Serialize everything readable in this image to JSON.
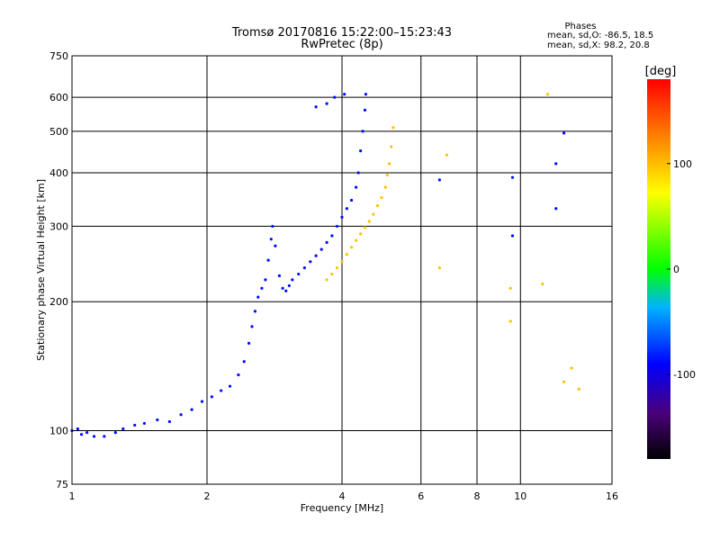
{
  "chart_data": {
    "type": "scatter",
    "title": "Tromsø 20170816 15:22:00–15:23:43",
    "subtitle": "RwPretec (8p)",
    "xlabel": "Frequency [MHz]",
    "ylabel": "Stationary phase Virtual Height [km]",
    "x_scale": "log",
    "y_scale": "log",
    "xlim": [
      1,
      16
    ],
    "ylim": [
      75,
      750
    ],
    "x_ticks": [
      1,
      2,
      4,
      6,
      8,
      10,
      16
    ],
    "x_tick_labels": [
      "1",
      "2",
      "4",
      "6",
      "8",
      "10",
      "16"
    ],
    "y_ticks": [
      75,
      100,
      200,
      300,
      400,
      500,
      600,
      750
    ],
    "y_tick_labels": [
      "75",
      "100",
      "200",
      "300",
      "400",
      "500",
      "600",
      "750"
    ],
    "grid": true,
    "stats": {
      "heading": "Phases",
      "line1": "mean, sd,O: -86.5, 18.5",
      "line2": "mean, sd,X:  98.2, 20.8"
    },
    "colorbar": {
      "label": "[deg]",
      "range": [
        -180,
        180
      ],
      "ticks": [
        100,
        0,
        -100
      ],
      "tick_labels": [
        "100",
        "0",
        "-100"
      ]
    },
    "series": [
      {
        "mode": "O",
        "phase_mean": -86.5,
        "phase_sd": 18.5,
        "points": [
          [
            1.0,
            100
          ],
          [
            1.03,
            101
          ],
          [
            1.05,
            98
          ],
          [
            1.08,
            99
          ],
          [
            1.12,
            97
          ],
          [
            1.18,
            97
          ],
          [
            1.25,
            99
          ],
          [
            1.3,
            101
          ],
          [
            1.38,
            103
          ],
          [
            1.45,
            104
          ],
          [
            1.55,
            106
          ],
          [
            1.65,
            105
          ],
          [
            1.75,
            109
          ],
          [
            1.85,
            112
          ],
          [
            1.95,
            117
          ],
          [
            2.05,
            120
          ],
          [
            2.15,
            124
          ],
          [
            2.25,
            127
          ],
          [
            2.35,
            135
          ],
          [
            2.42,
            145
          ],
          [
            2.48,
            160
          ],
          [
            2.52,
            175
          ],
          [
            2.56,
            190
          ],
          [
            2.6,
            205
          ],
          [
            2.65,
            215
          ],
          [
            2.7,
            225
          ],
          [
            2.74,
            250
          ],
          [
            2.78,
            280
          ],
          [
            2.8,
            300
          ],
          [
            2.84,
            270
          ],
          [
            2.9,
            230
          ],
          [
            2.95,
            215
          ],
          [
            3.0,
            212
          ],
          [
            3.05,
            218
          ],
          [
            3.1,
            225
          ],
          [
            3.2,
            232
          ],
          [
            3.3,
            240
          ],
          [
            3.4,
            248
          ],
          [
            3.5,
            256
          ],
          [
            3.6,
            265
          ],
          [
            3.7,
            275
          ],
          [
            3.8,
            285
          ],
          [
            3.9,
            300
          ],
          [
            4.0,
            315
          ],
          [
            4.1,
            330
          ],
          [
            4.2,
            345
          ],
          [
            4.3,
            370
          ],
          [
            4.35,
            400
          ],
          [
            4.4,
            450
          ],
          [
            4.45,
            500
          ],
          [
            4.5,
            560
          ],
          [
            4.52,
            610
          ],
          [
            3.5,
            570
          ],
          [
            3.7,
            580
          ],
          [
            3.85,
            600
          ],
          [
            4.05,
            610
          ],
          [
            6.6,
            385
          ],
          [
            9.6,
            390
          ],
          [
            9.6,
            285
          ],
          [
            12.0,
            420
          ],
          [
            12.0,
            330
          ],
          [
            12.5,
            495
          ]
        ]
      },
      {
        "mode": "X",
        "phase_mean": 98.2,
        "phase_sd": 20.8,
        "points": [
          [
            3.7,
            225
          ],
          [
            3.8,
            232
          ],
          [
            3.9,
            240
          ],
          [
            4.0,
            248
          ],
          [
            4.1,
            258
          ],
          [
            4.2,
            268
          ],
          [
            4.3,
            278
          ],
          [
            4.4,
            288
          ],
          [
            4.5,
            298
          ],
          [
            4.6,
            308
          ],
          [
            4.7,
            320
          ],
          [
            4.8,
            335
          ],
          [
            4.9,
            350
          ],
          [
            5.0,
            370
          ],
          [
            5.05,
            395
          ],
          [
            5.1,
            420
          ],
          [
            5.15,
            460
          ],
          [
            5.2,
            510
          ],
          [
            6.85,
            440
          ],
          [
            6.6,
            240
          ],
          [
            11.5,
            610
          ],
          [
            11.2,
            220
          ],
          [
            12.5,
            130
          ],
          [
            13.0,
            140
          ],
          [
            13.5,
            125
          ],
          [
            9.5,
            215
          ],
          [
            9.5,
            180
          ]
        ]
      }
    ]
  }
}
